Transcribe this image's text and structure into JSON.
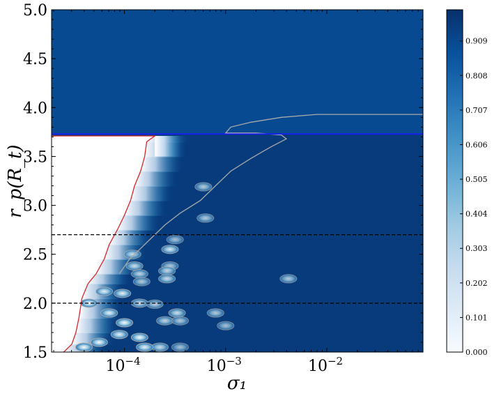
{
  "chart_data": {
    "type": "heatmap",
    "title": "",
    "xlabel": "σ₁",
    "ylabel": "r_p(R_t)",
    "xscale": "log",
    "xlim_log10": [
      -4.72,
      -1.05
    ],
    "ylim": [
      1.5,
      5.0
    ],
    "x_ticks": [
      {
        "label": "10",
        "exp": "−4",
        "log10": -4
      },
      {
        "label": "10",
        "exp": "−3",
        "log10": -3
      },
      {
        "label": "10",
        "exp": "−2",
        "log10": -2
      }
    ],
    "y_ticks": [
      {
        "label": "1.5",
        "value": 1.5
      },
      {
        "label": "2.0",
        "value": 2.0
      },
      {
        "label": "2.5",
        "value": 2.5
      },
      {
        "label": "3.0",
        "value": 3.0
      },
      {
        "label": "3.5",
        "value": 3.5
      },
      {
        "label": "4.0",
        "value": 4.0
      },
      {
        "label": "4.5",
        "value": 4.5
      },
      {
        "label": "5.0",
        "value": 5.0
      }
    ],
    "horizontal_lines": [
      {
        "name": "blue-solid",
        "y": 3.73,
        "color": "#1a1aff",
        "style": "solid"
      },
      {
        "name": "dashed-upper",
        "y": 2.7,
        "color": "#000000",
        "style": "dashed"
      },
      {
        "name": "dashed-lower",
        "y": 2.0,
        "color": "#000000",
        "style": "dashed"
      }
    ],
    "red_boundary": {
      "color": "#d62728",
      "points": [
        [
          -4.72,
          3.71
        ],
        [
          -3.7,
          3.71
        ],
        [
          -3.78,
          3.65
        ],
        [
          -3.8,
          3.5
        ],
        [
          -3.84,
          3.35
        ],
        [
          -3.9,
          3.2
        ],
        [
          -3.94,
          3.05
        ],
        [
          -4.0,
          2.9
        ],
        [
          -4.07,
          2.75
        ],
        [
          -4.15,
          2.6
        ],
        [
          -4.2,
          2.45
        ],
        [
          -4.28,
          2.3
        ],
        [
          -4.36,
          2.2
        ],
        [
          -4.42,
          2.05
        ],
        [
          -4.45,
          1.85
        ],
        [
          -4.48,
          1.7
        ],
        [
          -4.52,
          1.58
        ],
        [
          -4.6,
          1.5
        ]
      ]
    },
    "grey_contour": {
      "color": "#aaaaaa",
      "points": [
        [
          -1.05,
          3.93
        ],
        [
          -2.1,
          3.93
        ],
        [
          -2.45,
          3.9
        ],
        [
          -2.75,
          3.85
        ],
        [
          -2.95,
          3.8
        ],
        [
          -3.0,
          3.74
        ],
        [
          -2.7,
          3.74
        ],
        [
          -2.45,
          3.72
        ],
        [
          -2.4,
          3.68
        ],
        [
          -2.55,
          3.6
        ],
        [
          -2.75,
          3.48
        ],
        [
          -2.95,
          3.35
        ],
        [
          -3.1,
          3.2
        ],
        [
          -3.25,
          3.05
        ],
        [
          -3.45,
          2.92
        ],
        [
          -3.6,
          2.8
        ],
        [
          -3.72,
          2.68
        ],
        [
          -3.85,
          2.55
        ],
        [
          -3.95,
          2.45
        ],
        [
          -4.05,
          2.3
        ]
      ]
    },
    "colorbar": {
      "range": [
        0.0,
        1.0
      ],
      "ticks": [
        {
          "label": "0.000",
          "value": 0.0
        },
        {
          "label": "0.101",
          "value": 0.101
        },
        {
          "label": "0.202",
          "value": 0.202
        },
        {
          "label": "0.303",
          "value": 0.303
        },
        {
          "label": "0.404",
          "value": 0.404
        },
        {
          "label": "0.505",
          "value": 0.505
        },
        {
          "label": "0.606",
          "value": 0.606
        },
        {
          "label": "0.707",
          "value": 0.707
        },
        {
          "label": "0.808",
          "value": 0.808
        },
        {
          "label": "0.909",
          "value": 0.909
        }
      ],
      "colormap": "Blues",
      "stops": [
        "#f7fbff",
        "#deebf7",
        "#c6dbef",
        "#9ecae1",
        "#6baed6",
        "#4292c6",
        "#2171b5",
        "#08519c",
        "#08306b"
      ]
    },
    "island_regions": [
      {
        "x": -3.22,
        "y": 3.19,
        "value": 0.55
      },
      {
        "x": -3.2,
        "y": 2.87,
        "value": 0.55
      },
      {
        "x": -3.55,
        "y": 2.55,
        "value": 0.4
      },
      {
        "x": -3.5,
        "y": 2.65,
        "value": 0.6
      },
      {
        "x": -3.92,
        "y": 2.5,
        "value": 0.5
      },
      {
        "x": -3.9,
        "y": 2.38,
        "value": 0.45
      },
      {
        "x": -3.55,
        "y": 2.38,
        "value": 0.55
      },
      {
        "x": -3.58,
        "y": 2.33,
        "value": 0.5
      },
      {
        "x": -3.85,
        "y": 2.3,
        "value": 0.5
      },
      {
        "x": -3.83,
        "y": 2.22,
        "value": 0.55
      },
      {
        "x": -3.58,
        "y": 2.25,
        "value": 0.45
      },
      {
        "x": -4.2,
        "y": 2.12,
        "value": 0.4
      },
      {
        "x": -4.02,
        "y": 2.1,
        "value": 0.35
      },
      {
        "x": -3.85,
        "y": 2.0,
        "value": 0.45
      },
      {
        "x": -3.7,
        "y": 1.99,
        "value": 0.5
      },
      {
        "x": -3.48,
        "y": 1.9,
        "value": 0.45
      },
      {
        "x": -3.1,
        "y": 1.9,
        "value": 0.55
      },
      {
        "x": -3.6,
        "y": 1.82,
        "value": 0.5
      },
      {
        "x": -3.45,
        "y": 1.82,
        "value": 0.55
      },
      {
        "x": -4.15,
        "y": 1.9,
        "value": 0.35
      },
      {
        "x": -4.0,
        "y": 1.8,
        "value": 0.3
      },
      {
        "x": -4.05,
        "y": 1.68,
        "value": 0.35
      },
      {
        "x": -3.85,
        "y": 1.65,
        "value": 0.3
      },
      {
        "x": -3.65,
        "y": 1.55,
        "value": 0.45
      },
      {
        "x": -3.8,
        "y": 1.55,
        "value": 0.35
      },
      {
        "x": -3.45,
        "y": 1.55,
        "value": 0.6
      },
      {
        "x": -3.0,
        "y": 1.77,
        "value": 0.6
      },
      {
        "x": -2.38,
        "y": 2.25,
        "value": 0.55
      },
      {
        "x": -4.35,
        "y": 2.0,
        "value": 0.2
      },
      {
        "x": -4.25,
        "y": 1.6,
        "value": 0.25
      },
      {
        "x": -4.4,
        "y": 1.55,
        "value": 0.25
      }
    ]
  }
}
